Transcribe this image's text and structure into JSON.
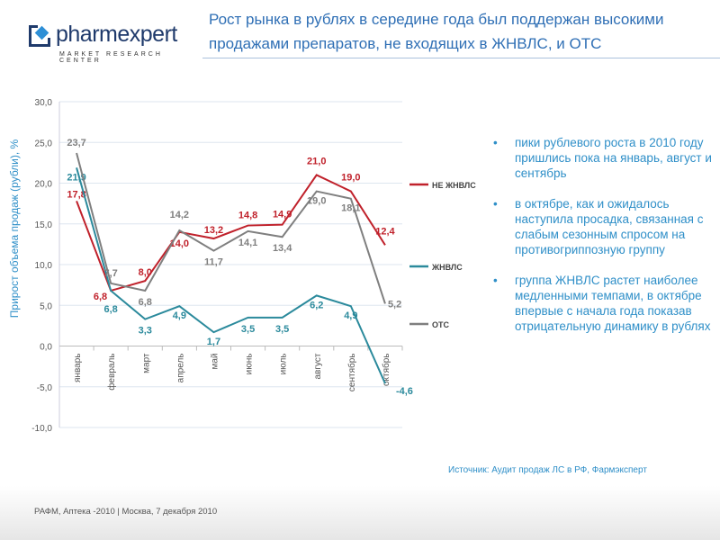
{
  "logo": {
    "name": "pharmexpert",
    "subtitle": "MARKET RESEARCH CENTER"
  },
  "title": "Рост рынка в рублях в середине года был поддержан высокими продажами препаратов, не входящих в ЖНВЛС, и ОТС",
  "bullets": [
    "пики рублевого роста в 2010 году пришлись пока на январь, август и сентябрь",
    "в октябре, как и ожидалось наступила просадка, связанная с слабым сезонным спросом на противогриппозную группу",
    "группа ЖНВЛС растет наиболее медленными темпами, в октябре впервые с начала года показав отрицательную динамику в рублях"
  ],
  "source": "Источник: Аудит продаж ЛС в РФ, Фармэксперт",
  "footer": "РАФМ, Аптека -2010 | Москва, 7 декабря 2010",
  "chart_data": {
    "type": "line",
    "ylabel": "Прирост объема продаж (рубли), %",
    "ylim": [
      -10,
      30
    ],
    "yticks": [
      "-10,0",
      "-5,0",
      "0,0",
      "5,0",
      "10,0",
      "15,0",
      "20,0",
      "25,0",
      "30,0"
    ],
    "categories": [
      "январь",
      "февраль",
      "март",
      "апрель",
      "май",
      "июнь",
      "июль",
      "август",
      "сентябрь",
      "октябрь"
    ],
    "series": [
      {
        "name": "НЕ ЖНВЛС",
        "color": "#c0212b",
        "values": [
          17.8,
          6.8,
          8.0,
          14.0,
          13.2,
          14.8,
          14.9,
          21.0,
          19.0,
          12.4
        ],
        "labels": [
          "17,8",
          "6,8",
          "8,0",
          "14,0",
          "13,2",
          "14,8",
          "14,9",
          "21,0",
          "19,0",
          "12,4"
        ]
      },
      {
        "name": "ЖНВЛС",
        "color": "#2b8a9c",
        "values": [
          21.9,
          6.8,
          3.3,
          4.9,
          1.7,
          3.5,
          3.5,
          6.2,
          4.9,
          -4.6
        ],
        "labels": [
          "21,9",
          "6,8",
          "3,3",
          "4,9",
          "1,7",
          "3,5",
          "3,5",
          "6,2",
          "4,9",
          "-4,6"
        ]
      },
      {
        "name": "ОТС",
        "color": "#7f7f7f",
        "values": [
          23.7,
          7.7,
          6.8,
          14.2,
          11.7,
          14.1,
          13.4,
          19.0,
          18.1,
          5.2
        ],
        "labels": [
          "23,7",
          "7,7",
          "6,8",
          "14,2",
          "11,7",
          "14,1",
          "13,4",
          "19,0",
          "18,1",
          "5,2"
        ]
      }
    ]
  }
}
